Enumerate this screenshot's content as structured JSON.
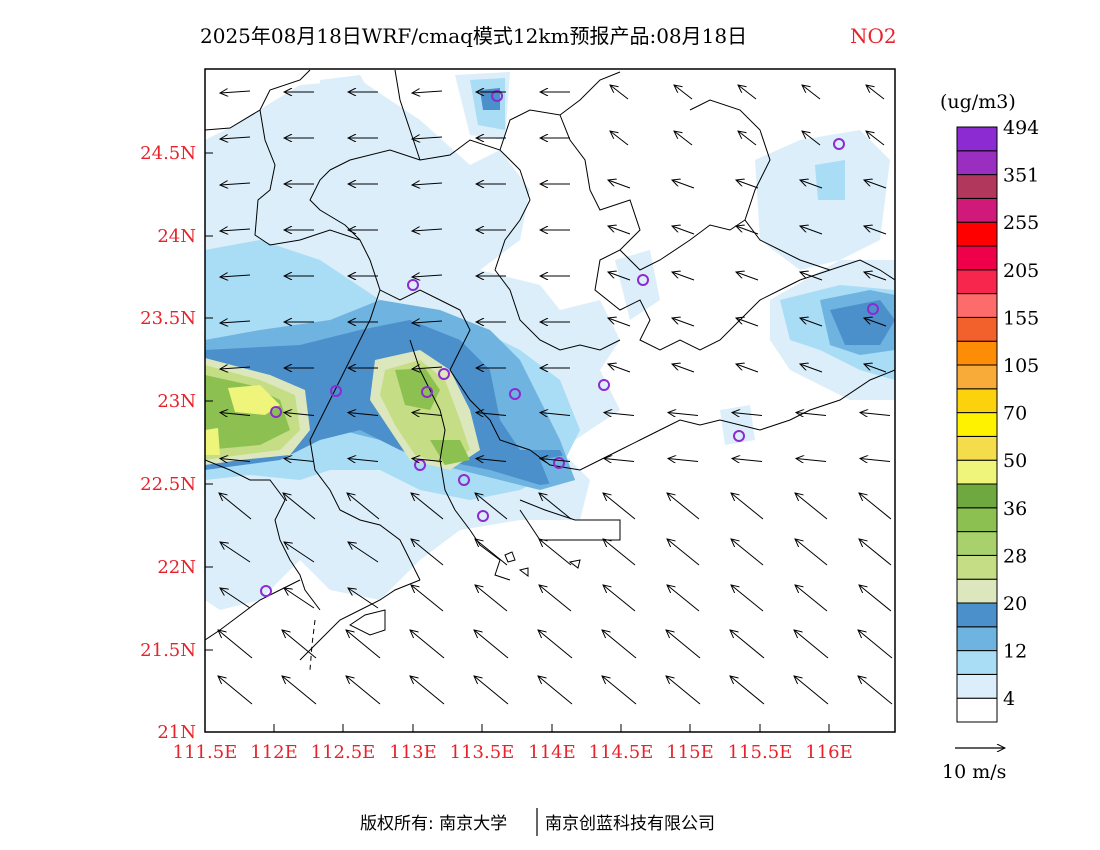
{
  "header": {
    "title": "2025年08月18日WRF/cmaq模式12km预报产品:08月18日",
    "species": "NO2"
  },
  "axes": {
    "lon_ticks": [
      "111.5E",
      "112E",
      "112.5E",
      "113E",
      "113.5E",
      "114E",
      "114.5E",
      "115E",
      "115.5E",
      "116E"
    ],
    "lat_ticks": [
      "24.5N",
      "24N",
      "23.5N",
      "23N",
      "22.5N",
      "22N",
      "21.5N",
      "21N"
    ]
  },
  "colorbar": {
    "unit": "(ug/m3)",
    "colors": [
      "#ffffff",
      "#dbeefa",
      "#a9dcf5",
      "#6fb3e0",
      "#4b8fcb",
      "#dde7be",
      "#c5dd84",
      "#a8d06c",
      "#8cc152",
      "#6fa83e",
      "#eef57a",
      "#f5dc4a",
      "#fff200",
      "#fcd20c",
      "#f9ab3a",
      "#fd8c06",
      "#f2602c",
      "#fd6b6b",
      "#f6264d",
      "#ef004a",
      "#ff0000",
      "#cf1a79",
      "#b1385c",
      "#9a2ec0",
      "#8b2bd1"
    ],
    "labels": [
      "4",
      "12",
      "20",
      "28",
      "36",
      "50",
      "70",
      "105",
      "155",
      "205",
      "255",
      "351",
      "494"
    ]
  },
  "wind_legend": {
    "label": "10 m/s"
  },
  "footer": {
    "left": "版权所有: 南京大学",
    "right": "南京创蓝科技有限公司"
  }
}
